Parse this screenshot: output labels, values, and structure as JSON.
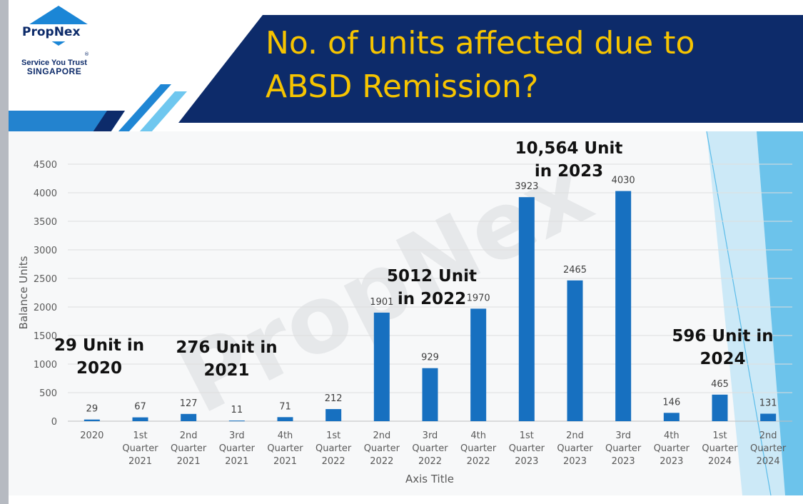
{
  "logo": {
    "name": "PropNex",
    "tagline": "Service You Trust",
    "region": "SINGAPORE",
    "reg_mark": "®"
  },
  "title_lines": [
    "No. of units affected due to",
    "ABSD Remission?"
  ],
  "watermark": "PropNex",
  "colors": {
    "navy": "#0d2b6a",
    "gold": "#f6c400",
    "bar": "#1770c0",
    "light_blue": "#6fc7ef"
  },
  "chart_data": {
    "type": "bar",
    "categories": [
      [
        "2020"
      ],
      [
        "1st",
        "Quarter",
        "2021"
      ],
      [
        "2nd",
        "Quarter",
        "2021"
      ],
      [
        "3rd",
        "Quarter",
        "2021"
      ],
      [
        "4th",
        "Quarter",
        "2021"
      ],
      [
        "1st",
        "Quarter",
        "2022"
      ],
      [
        "2nd",
        "Quarter",
        "2022"
      ],
      [
        "3rd",
        "Quarter",
        "2022"
      ],
      [
        "4th",
        "Quarter",
        "2022"
      ],
      [
        "1st",
        "Quarter",
        "2023"
      ],
      [
        "2nd",
        "Quarter",
        "2023"
      ],
      [
        "3rd",
        "Quarter",
        "2023"
      ],
      [
        "4th",
        "Quarter",
        "2023"
      ],
      [
        "1st",
        "Quarter",
        "2024"
      ],
      [
        "2nd",
        "Quarter",
        "2024"
      ]
    ],
    "values": [
      29,
      67,
      127,
      11,
      71,
      212,
      1901,
      929,
      1970,
      3923,
      2465,
      4030,
      146,
      465,
      131
    ],
    "xlabel": "Axis Title",
    "ylabel": "Balance Units",
    "ylim": [
      0,
      4500
    ],
    "yticks": [
      0,
      500,
      1000,
      1500,
      2000,
      2500,
      3000,
      3500,
      4000,
      4500
    ],
    "grid": true,
    "legend": "none"
  },
  "callouts": [
    {
      "lines": [
        "29 Unit in",
        "2020"
      ]
    },
    {
      "lines": [
        "276 Unit in",
        "2021"
      ]
    },
    {
      "lines": [
        "5012 Unit",
        "in 2022"
      ]
    },
    {
      "lines": [
        "10,564 Unit",
        "in 2023"
      ]
    },
    {
      "lines": [
        "596 Unit in",
        "2024"
      ]
    }
  ]
}
